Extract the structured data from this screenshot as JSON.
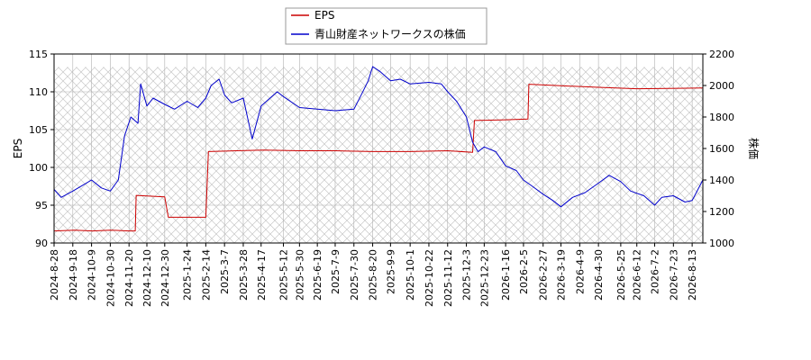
{
  "chart_data": {
    "type": "line",
    "title": "",
    "xlabel": "",
    "ylabel_left": "EPS",
    "ylabel_right": "株価",
    "ylim_left": [
      90,
      115
    ],
    "ylim_right": [
      1000,
      2200
    ],
    "yticks_left": [
      90,
      95,
      100,
      105,
      110,
      115
    ],
    "yticks_right": [
      1000,
      1200,
      1400,
      1600,
      1800,
      2000,
      2200
    ],
    "x_start": "2024-08-28",
    "x_end": "2026-08-25",
    "xtick_labels": [
      "2024-8-28",
      "2024-9-18",
      "2024-10-9",
      "2024-10-30",
      "2024-11-20",
      "2024-12-10",
      "2024-12-30",
      "2025-1-24",
      "2025-2-14",
      "2025-3-7",
      "2025-3-28",
      "2025-4-17",
      "2025-5-12",
      "2025-5-30",
      "2025-6-19",
      "2025-7-9",
      "2025-7-30",
      "2025-8-20",
      "2025-9-9",
      "2025-10-1",
      "2025-10-22",
      "2025-11-12",
      "2025-12-3",
      "2025-12-23",
      "2026-1-16",
      "2026-2-5",
      "2026-2-27",
      "2026-3-19",
      "2026-4-9",
      "2026-4-30",
      "2026-5-25",
      "2026-6-12",
      "2026-7-2",
      "2026-7-23",
      "2026-8-13"
    ],
    "grid": true,
    "legend_position": "top-center",
    "series": [
      {
        "name": "EPS",
        "axis": "left",
        "color": "#cc0000",
        "points": [
          [
            "2024-08-28",
            91.6
          ],
          [
            "2024-09-20",
            91.7
          ],
          [
            "2024-10-10",
            91.6
          ],
          [
            "2024-10-30",
            91.7
          ],
          [
            "2024-11-20",
            91.6
          ],
          [
            "2024-11-27",
            91.6
          ],
          [
            "2024-11-28",
            96.3
          ],
          [
            "2024-12-30",
            96.1
          ],
          [
            "2025-01-03",
            93.4
          ],
          [
            "2025-02-14",
            93.4
          ],
          [
            "2025-02-17",
            102.1
          ],
          [
            "2025-03-20",
            102.2
          ],
          [
            "2025-04-20",
            102.3
          ],
          [
            "2025-05-30",
            102.2
          ],
          [
            "2025-07-09",
            102.2
          ],
          [
            "2025-08-20",
            102.1
          ],
          [
            "2025-10-01",
            102.1
          ],
          [
            "2025-11-12",
            102.2
          ],
          [
            "2025-12-10",
            102.0
          ],
          [
            "2025-12-12",
            106.2
          ],
          [
            "2026-01-16",
            106.3
          ],
          [
            "2026-02-10",
            106.4
          ],
          [
            "2026-02-11",
            111.0
          ],
          [
            "2026-03-19",
            110.8
          ],
          [
            "2026-04-30",
            110.6
          ],
          [
            "2026-06-12",
            110.4
          ],
          [
            "2026-08-25",
            110.5
          ]
        ]
      },
      {
        "name": "青山財産ネットワークスの株価",
        "axis": "right",
        "color": "#0000cc",
        "points": [
          [
            "2024-08-28",
            1340
          ],
          [
            "2024-09-05",
            1290
          ],
          [
            "2024-09-18",
            1330
          ],
          [
            "2024-09-30",
            1370
          ],
          [
            "2024-10-09",
            1400
          ],
          [
            "2024-10-20",
            1350
          ],
          [
            "2024-10-30",
            1330
          ],
          [
            "2024-11-08",
            1400
          ],
          [
            "2024-11-15",
            1680
          ],
          [
            "2024-11-22",
            1800
          ],
          [
            "2024-11-30",
            1760
          ],
          [
            "2024-12-03",
            2010
          ],
          [
            "2024-12-10",
            1870
          ],
          [
            "2024-12-17",
            1920
          ],
          [
            "2024-12-30",
            1880
          ],
          [
            "2025-01-10",
            1850
          ],
          [
            "2025-01-24",
            1900
          ],
          [
            "2025-02-05",
            1860
          ],
          [
            "2025-02-14",
            1920
          ],
          [
            "2025-02-20",
            2000
          ],
          [
            "2025-03-01",
            2040
          ],
          [
            "2025-03-07",
            1940
          ],
          [
            "2025-03-15",
            1890
          ],
          [
            "2025-03-28",
            1920
          ],
          [
            "2025-04-07",
            1660
          ],
          [
            "2025-04-17",
            1870
          ],
          [
            "2025-04-25",
            1910
          ],
          [
            "2025-05-05",
            1960
          ],
          [
            "2025-05-12",
            1930
          ],
          [
            "2025-05-30",
            1860
          ],
          [
            "2025-06-19",
            1850
          ],
          [
            "2025-07-09",
            1840
          ],
          [
            "2025-07-30",
            1850
          ],
          [
            "2025-08-08",
            1950
          ],
          [
            "2025-08-15",
            2030
          ],
          [
            "2025-08-20",
            2120
          ],
          [
            "2025-08-28",
            2090
          ],
          [
            "2025-09-09",
            2030
          ],
          [
            "2025-09-20",
            2040
          ],
          [
            "2025-10-01",
            2010
          ],
          [
            "2025-10-22",
            2020
          ],
          [
            "2025-11-05",
            2010
          ],
          [
            "2025-11-12",
            1960
          ],
          [
            "2025-11-22",
            1900
          ],
          [
            "2025-12-03",
            1800
          ],
          [
            "2025-12-10",
            1640
          ],
          [
            "2025-12-16",
            1580
          ],
          [
            "2025-12-23",
            1610
          ],
          [
            "2026-01-05",
            1580
          ],
          [
            "2026-01-16",
            1490
          ],
          [
            "2026-01-28",
            1460
          ],
          [
            "2026-02-05",
            1400
          ],
          [
            "2026-02-15",
            1360
          ],
          [
            "2026-02-27",
            1310
          ],
          [
            "2026-03-10",
            1270
          ],
          [
            "2026-03-19",
            1230
          ],
          [
            "2026-04-01",
            1290
          ],
          [
            "2026-04-15",
            1320
          ],
          [
            "2026-04-30",
            1380
          ],
          [
            "2026-05-12",
            1430
          ],
          [
            "2026-05-25",
            1390
          ],
          [
            "2026-06-05",
            1330
          ],
          [
            "2026-06-20",
            1300
          ],
          [
            "2026-07-02",
            1240
          ],
          [
            "2026-07-10",
            1290
          ],
          [
            "2026-07-23",
            1300
          ],
          [
            "2026-08-05",
            1260
          ],
          [
            "2026-08-13",
            1270
          ],
          [
            "2026-08-25",
            1400
          ]
        ]
      }
    ]
  }
}
